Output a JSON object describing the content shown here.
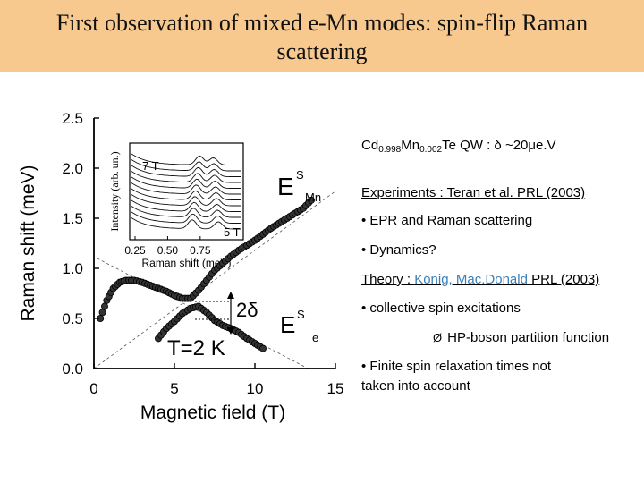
{
  "slide": {
    "title_line1": "First observation of mixed e-Mn modes: spin-flip Raman",
    "title_line2": "scattering"
  },
  "panel": {
    "sample": {
      "prefix": "Cd",
      "sub1": "0.998",
      "mid": "Mn",
      "sub2": "0.002",
      "suffix": "Te QW : δ ~20μe.V"
    },
    "experiments_label": "Experiments : Teran et al. PRL (2003)",
    "bullet1": "• EPR and Raman scattering",
    "bullet2": "• Dynamics?",
    "theory_prefix": "Theory : ",
    "theory_authors": "König, Mac.Donald",
    "theory_ref": " PRL (2003)",
    "bullet3": "• collective spin excitations",
    "arrow_symbol": "Ø",
    "sub_bullet": "HP-boson partition function",
    "bullet4_line1": "• Finite spin relaxation times not",
    "bullet4_line2": "taken into account"
  },
  "chart_data": {
    "type": "scatter",
    "xlabel": "Magnetic field (T)",
    "ylabel": "Raman shift (meV)",
    "xlim": [
      0,
      15
    ],
    "ylim": [
      0,
      2.5
    ],
    "xticks": [
      "0",
      "5",
      "10",
      "15"
    ],
    "yticks": [
      "0.0",
      "0.5",
      "1.0",
      "1.5",
      "2.0",
      "2.5"
    ],
    "annotations": {
      "upper_branch_label": "E",
      "upper_branch_sup": "S",
      "upper_branch_sub": "Mn",
      "lower_branch_label": "E",
      "lower_branch_sup": "S",
      "lower_branch_sub": "e",
      "gap_label": "2δ",
      "temperature": "T=2 K"
    },
    "series": [
      {
        "name": "Upper branch (E^S_Mn)",
        "x": [
          0.4,
          0.8,
          1.2,
          1.6,
          2.0,
          2.5,
          3.0,
          3.5,
          4.0,
          4.5,
          5.0,
          5.5,
          6.0,
          6.5,
          7.0,
          7.5,
          8.0,
          8.5,
          9.0,
          9.5,
          10.0,
          10.5,
          11.0,
          11.5,
          12.0,
          12.5,
          13.0,
          13.5
        ],
        "y": [
          0.5,
          0.68,
          0.8,
          0.86,
          0.88,
          0.88,
          0.86,
          0.83,
          0.8,
          0.77,
          0.73,
          0.7,
          0.7,
          0.78,
          0.88,
          0.98,
          1.05,
          1.12,
          1.18,
          1.23,
          1.28,
          1.34,
          1.4,
          1.45,
          1.5,
          1.55,
          1.6,
          1.68
        ]
      },
      {
        "name": "Lower branch (E^S_e)",
        "x": [
          4.0,
          4.5,
          5.0,
          5.5,
          6.0,
          6.5,
          7.0,
          7.5,
          8.0,
          8.5,
          9.0,
          9.5,
          10.0,
          10.5
        ],
        "y": [
          0.3,
          0.4,
          0.47,
          0.55,
          0.6,
          0.62,
          0.56,
          0.48,
          0.43,
          0.4,
          0.36,
          0.3,
          0.25,
          0.2
        ]
      }
    ],
    "guide_lines": [
      {
        "name": "Zeeman-like diagonal",
        "x": [
          0,
          15
        ],
        "y": [
          0.0,
          1.77
        ]
      },
      {
        "name": "Falling Mn line",
        "x": [
          0.2,
          13.3
        ],
        "y": [
          1.1,
          0.0
        ]
      }
    ],
    "inset": {
      "xlabel": "Raman shift (meV)",
      "ylabel": "Intensity (arb. un.)",
      "xticks": [
        "0.25",
        "0.50",
        "0.75"
      ],
      "top_label": "7 T",
      "bottom_label": "5 T",
      "curves": 12
    }
  }
}
